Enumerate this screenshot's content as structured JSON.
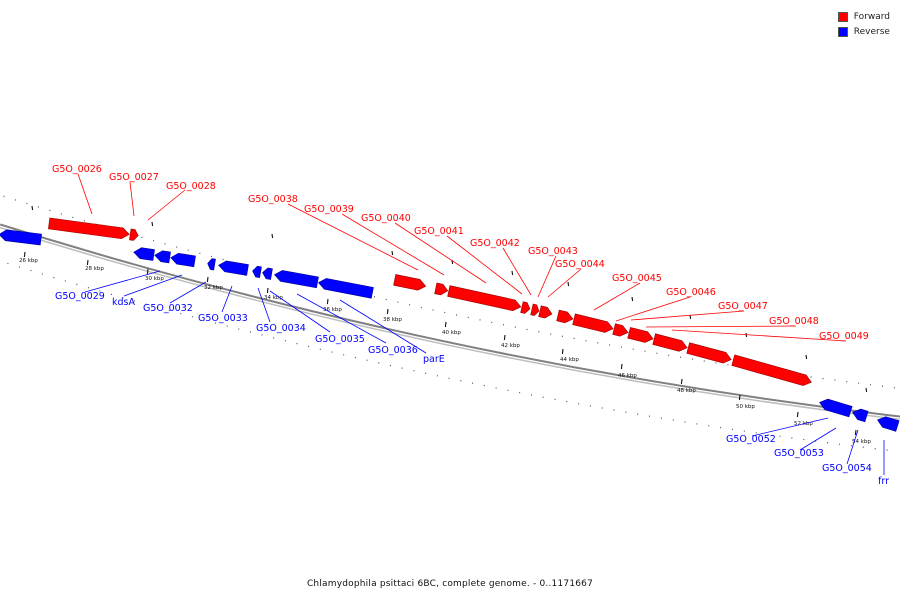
{
  "caption": "Chlamydophila psittaci 6BC, complete genome. - 0..1171667",
  "legend": [
    {
      "label": "Forward",
      "color": "#ff0000"
    },
    {
      "label": "Reverse",
      "color": "#0000ff"
    }
  ],
  "colors": {
    "forward": "#ff0000",
    "reverse": "#0000ff",
    "backbone": "#808080"
  },
  "ticks": [
    "26 kbp",
    "28 kbp",
    "30 kbp",
    "32 kbp",
    "34 kbp",
    "36 kbp",
    "38 kbp",
    "40 kbp",
    "42 kbp",
    "44 kbp",
    "46 kbp",
    "48 kbp",
    "50 kbp",
    "52 kbp",
    "54 kbp"
  ],
  "forward_genes": [
    "G5O_0026",
    "G5O_0027",
    "G5O_0028",
    "G5O_0038",
    "G5O_0039",
    "G5O_0040",
    "G5O_0041",
    "G5O_0042",
    "G5O_0043",
    "G5O_0044",
    "G5O_0045",
    "G5O_0046",
    "G5O_0047",
    "G5O_0048",
    "G5O_0049"
  ],
  "reverse_genes": [
    "G5O_0029",
    "kdsA",
    "G5O_0032",
    "G5O_0033",
    "G5O_0034",
    "G5O_0035",
    "G5O_0036",
    "parE",
    "G5O_0052",
    "G5O_0053",
    "G5O_0054",
    "frr"
  ]
}
